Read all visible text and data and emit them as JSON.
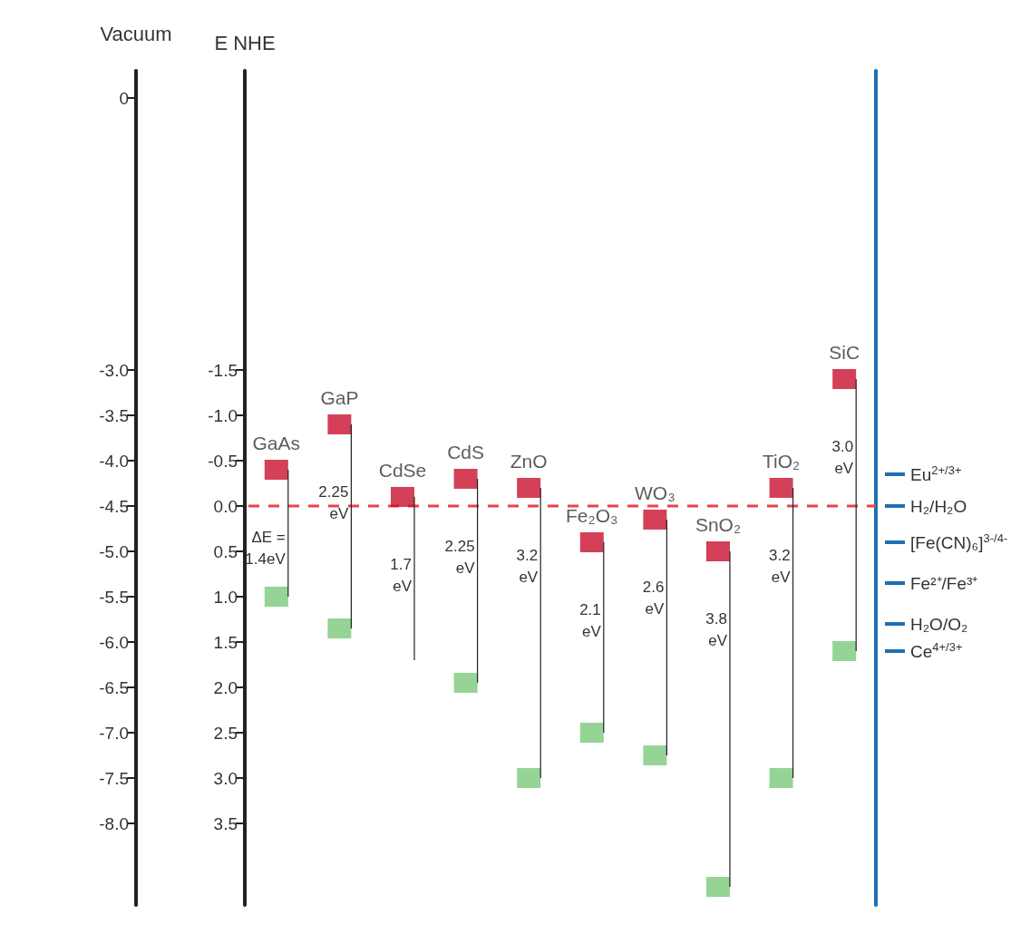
{
  "chart_data": {
    "type": "scatter",
    "marker": "square",
    "ylabel": "E NHE",
    "y2label": "Vacuum",
    "categories": [
      "GaAs",
      "GaP",
      "CdSe",
      "CdS",
      "ZnO",
      "Fe₂O₃",
      "WO₃",
      "SnO₂",
      "TiO₂",
      "SiC"
    ],
    "series": [
      {
        "color": "#c8102e",
        "values": [
          -0.4,
          -0.9,
          -0.1,
          -0.3,
          -0.2,
          0.4,
          0.15,
          0.5,
          -0.2,
          -1.4
        ],
        "errors": [
          [
            -0.4,
            1.0
          ],
          [
            -0.9,
            1.35
          ],
          [
            -0.1,
            1.7
          ],
          [
            -0.3,
            1.95
          ],
          [
            -0.2,
            3.0
          ],
          [
            0.4,
            2.5
          ],
          [
            0.15,
            2.75
          ],
          [
            0.5,
            4.2
          ],
          [
            -0.2,
            3.0
          ],
          [
            -1.4,
            1.6
          ]
        ]
      },
      {
        "color": "#7ac97a",
        "values": [
          1.0,
          1.35,
          null,
          1.95,
          3.0,
          2.5,
          2.75,
          4.2,
          3.0,
          1.6
        ]
      }
    ],
    "ylim": [
      4.4,
      -4.8
    ],
    "yticks": [
      -1.5,
      {
        "value": -1,
        "label": "-1.0"
      },
      -0.5,
      {
        "value": 0,
        "label": "0.0"
      },
      0.5,
      {
        "value": 1,
        "label": "1.0"
      },
      1.5,
      {
        "value": 2,
        "label": "2.0"
      },
      2.5,
      {
        "value": 3,
        "label": "3.0"
      },
      3.5
    ],
    "y2lim": [
      -8.9,
      0.3
    ],
    "y2ticks": [
      0,
      {
        "value": -3,
        "label": "-3.0"
      },
      -3.5,
      {
        "value": -4,
        "label": "-4.0"
      },
      -4.5,
      {
        "value": -5,
        "label": "-5.0"
      },
      -5.5,
      {
        "value": -6,
        "label": "-6.0"
      },
      -6.5,
      {
        "value": -7,
        "label": "-7.0"
      },
      -7.5,
      {
        "value": -8,
        "label": "-8.0"
      }
    ],
    "ref_lines": [
      {
        "axis": "y",
        "value": 0,
        "color": "#e8434a",
        "line_style": "dashed"
      },
      {
        "axis": "y",
        "value": -0.35,
        "label": "Eu$^{2+/3+}$",
        "color": "#1f6fb2"
      },
      {
        "axis": "y",
        "value": 0,
        "label": "H₂/H₂O",
        "color": "#1f6fb2"
      },
      {
        "axis": "y",
        "value": 0.4,
        "label": "[Fe(CN)₆]$^{3-/4-}$",
        "color": "#1f6fb2"
      },
      {
        "axis": "y",
        "value": 0.85,
        "label": "Fe²⁺/Fe³⁺",
        "color": "#1f6fb2"
      },
      {
        "axis": "y",
        "value": 1.3,
        "label": "H₂O/O₂",
        "color": "#1f6fb2"
      },
      {
        "axis": "y",
        "value": 1.6,
        "label": "Ce$^{4+/3+}$",
        "color": "#1f6fb2"
      }
    ],
    "annotations": [
      "ΔE =\n1.4eV",
      "2.25\neV",
      "1.7\neV",
      "2.25\neV",
      "3.2\neV",
      "2.1\neV",
      "2.6\neV",
      "3.8\neV",
      "3.2\neV",
      "3.0\neV"
    ],
    "tick_labels": "y"
  }
}
